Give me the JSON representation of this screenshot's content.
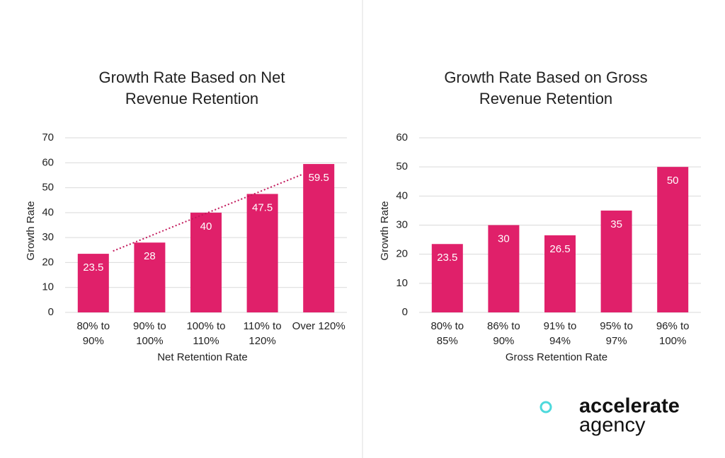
{
  "chart_data": [
    {
      "type": "bar",
      "title": "Growth Rate Based on Net Revenue Retention",
      "x_label": "Net Retention Rate",
      "y_label": "Growth Rate",
      "categories": [
        "80% to 90%",
        "90% to 100%",
        "100% to 110%",
        "110% to 120%",
        "Over 120%"
      ],
      "values": [
        23.5,
        28,
        40,
        47.5,
        59.5
      ],
      "color": "#e0206a",
      "ylim": [
        0,
        70
      ],
      "yticks": [
        0,
        10,
        20,
        30,
        40,
        50,
        60,
        70
      ],
      "grid": true,
      "trendline": "linear",
      "trendline_color": "#c2185b"
    },
    {
      "type": "bar",
      "title": "Growth Rate Based on Gross Revenue Retention",
      "x_label": "Gross Retention Rate",
      "y_label": "Growth Rate",
      "categories": [
        "80% to 85%",
        "86% to 90%",
        "91% to 94%",
        "95% to 97%",
        "96% to 100%"
      ],
      "values": [
        23.5,
        30,
        26.5,
        35,
        50
      ],
      "color": "#e0206a",
      "ylim": [
        0,
        60
      ],
      "yticks": [
        0,
        10,
        20,
        30,
        40,
        50,
        60
      ],
      "grid": true
    }
  ],
  "brand": {
    "line1": "accelerate",
    "line2": "agency"
  }
}
